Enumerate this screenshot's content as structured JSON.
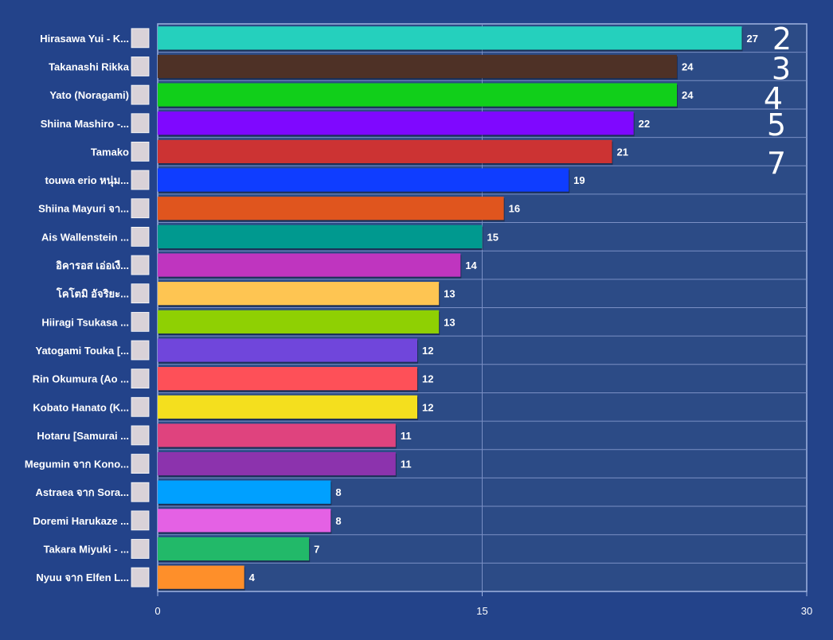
{
  "chart_data": {
    "type": "bar",
    "orientation": "horizontal",
    "categories": [
      "Hirasawa Yui - K...",
      "Takanashi Rikka",
      "Yato (Noragami)",
      "Shiina Mashiro -...",
      "Tamako",
      "touwa erio หนุ่ม...",
      "Shiina Mayuri จา...",
      "Ais Wallenstein ...",
      "อิคารอส เอ่อเงื...",
      "โคโตมิ อัจริยะ...",
      "Hiiragi Tsukasa ...",
      "Yatogami Touka [...",
      "Rin Okumura (Ao ...",
      "Kobato Hanato (K...",
      "Hotaru [Samurai ...",
      "Megumin จาก Kono...",
      "Astraea จาก Sora...",
      "Doremi Harukaze ...",
      "Takara Miyuki - ...",
      "Nyuu จาก Elfen L..."
    ],
    "values": [
      27,
      24,
      24,
      22,
      21,
      19,
      16,
      15,
      14,
      13,
      13,
      12,
      12,
      12,
      11,
      11,
      8,
      8,
      7,
      4
    ],
    "colors": [
      "#25d0bd",
      "#4e3126",
      "#11cf1a",
      "#7f08ff",
      "#cc3333",
      "#0f3dff",
      "#e0551e",
      "#00998f",
      "#bf35bf",
      "#fec552",
      "#8fd003",
      "#7046db",
      "#fe5058",
      "#f4df1e",
      "#df437e",
      "#8c33ad",
      "#00a0ff",
      "#e461e4",
      "#22b969",
      "#fe8f2a"
    ],
    "xlim": [
      0,
      30
    ],
    "xticks": [
      "0",
      "15",
      "30"
    ],
    "grid": true,
    "annotations": [
      "2",
      "3",
      "4",
      "5",
      "7"
    ]
  }
}
